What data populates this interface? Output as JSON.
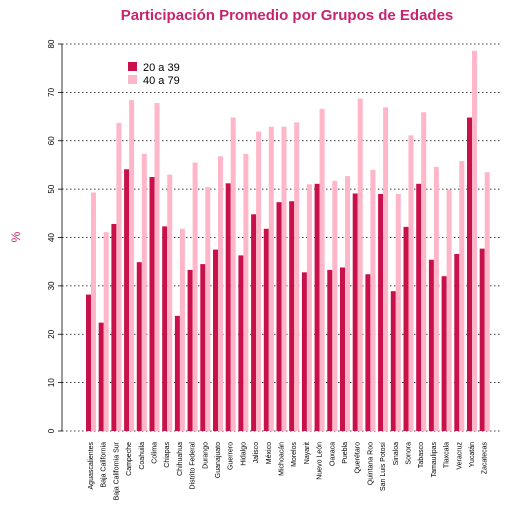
{
  "chart_data": {
    "type": "bar",
    "title": "Participación Promedio por Grupos de Edades",
    "xlabel": "",
    "ylabel": "%",
    "ylim": [
      0,
      80
    ],
    "yticks": [
      0,
      10,
      20,
      30,
      40,
      50,
      60,
      70,
      80
    ],
    "grid": true,
    "legend_position": "top-left",
    "categories": [
      "Aguascalientes",
      "Baja California",
      "Baja California Sur",
      "Campeche",
      "Coahuila",
      "Colima",
      "Chiapas",
      "Chihuahua",
      "Distrito Federal",
      "Durango",
      "Guanajuato",
      "Guerrero",
      "Hidalgo",
      "Jalisco",
      "México",
      "Michoacán",
      "Morelos",
      "Nayarit",
      "Nuevo León",
      "Oaxaca",
      "Puebla",
      "Querétaro",
      "Quintana Roo",
      "San Luis Potosí",
      "Sinaloa",
      "Sonora",
      "Tabasco",
      "Tamaulipas",
      "Tlaxcala",
      "Veracruz",
      "Yucatán",
      "Zacatecas"
    ],
    "series": [
      {
        "name": "20 a 39",
        "color": "#c8104a",
        "values": [
          28.2,
          22.4,
          42.8,
          54.1,
          34.9,
          52.5,
          42.3,
          23.8,
          33.3,
          34.5,
          37.5,
          51.2,
          36.3,
          44.8,
          41.8,
          47.3,
          47.5,
          32.8,
          51.1,
          33.3,
          33.8,
          49.1,
          32.4,
          49.0,
          28.9,
          42.2,
          51.1,
          35.4,
          32.0,
          36.6,
          64.8,
          37.7
        ]
      },
      {
        "name": "40 a 79",
        "color": "#ffb6c8",
        "values": [
          49.3,
          41.1,
          63.7,
          68.4,
          57.3,
          67.8,
          53.0,
          41.8,
          55.5,
          50.4,
          56.8,
          64.8,
          57.3,
          61.9,
          62.9,
          62.9,
          63.8,
          51.0,
          66.6,
          51.7,
          52.7,
          68.7,
          54.0,
          66.9,
          49.0,
          61.1,
          65.9,
          54.6,
          49.9,
          55.8,
          78.6,
          53.5
        ]
      }
    ]
  }
}
